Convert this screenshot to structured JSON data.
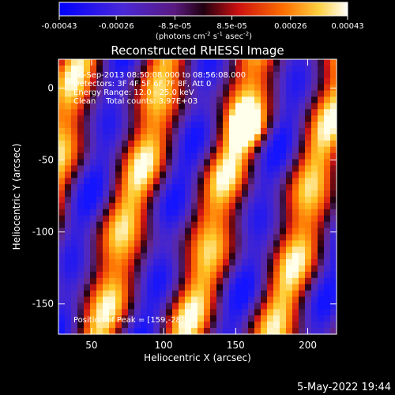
{
  "chart_data": {
    "type": "heatmap",
    "title": "Reconstructed RHESSI Image",
    "xlabel": "Heliocentric X (arcsec)",
    "ylabel": "Heliocentric Y (arcsec)",
    "xlim": [
      27,
      220
    ],
    "ylim": [
      -171,
      20
    ],
    "x_ticks": [
      50,
      100,
      150,
      200
    ],
    "y_ticks": [
      0,
      -50,
      -100,
      -150
    ],
    "colorbar": {
      "ticks": [
        "-0.00043",
        "-0.00026",
        "-8.5e-05",
        "8.5e-05",
        "0.00026",
        "0.00043"
      ],
      "tick_values": [
        -0.00043,
        -0.00026,
        -8.5e-05,
        8.5e-05,
        0.00026,
        0.00043
      ],
      "range": [
        -0.00043,
        0.00043
      ],
      "units_main": "(photons cm",
      "units_exp1": "-2",
      "units_mid": " s",
      "units_exp2": "-1",
      "units_end": " asec",
      "units_exp3": "-2",
      "units_close": ")"
    },
    "annotations": [
      "26-Sep-2013 08:50:08.000 to 08:56:08.000",
      "Detectors: 3F 4F 5F 6F 7F 8F, Att 0",
      "Energy Range: 12.0 - 25.0 keV",
      "Clean    Total counts: 3.97E+03"
    ],
    "peak_label": "Position of Peak = [159,-28]",
    "peak_position": [
      159,
      -28
    ],
    "grid": false,
    "colormap": [
      "#0000ff",
      "#6a1fb0",
      "#2a0010",
      "#ff2020",
      "#ffa500",
      "#ffffff"
    ]
  },
  "footer_timestamp": "5-May-2022 19:44"
}
